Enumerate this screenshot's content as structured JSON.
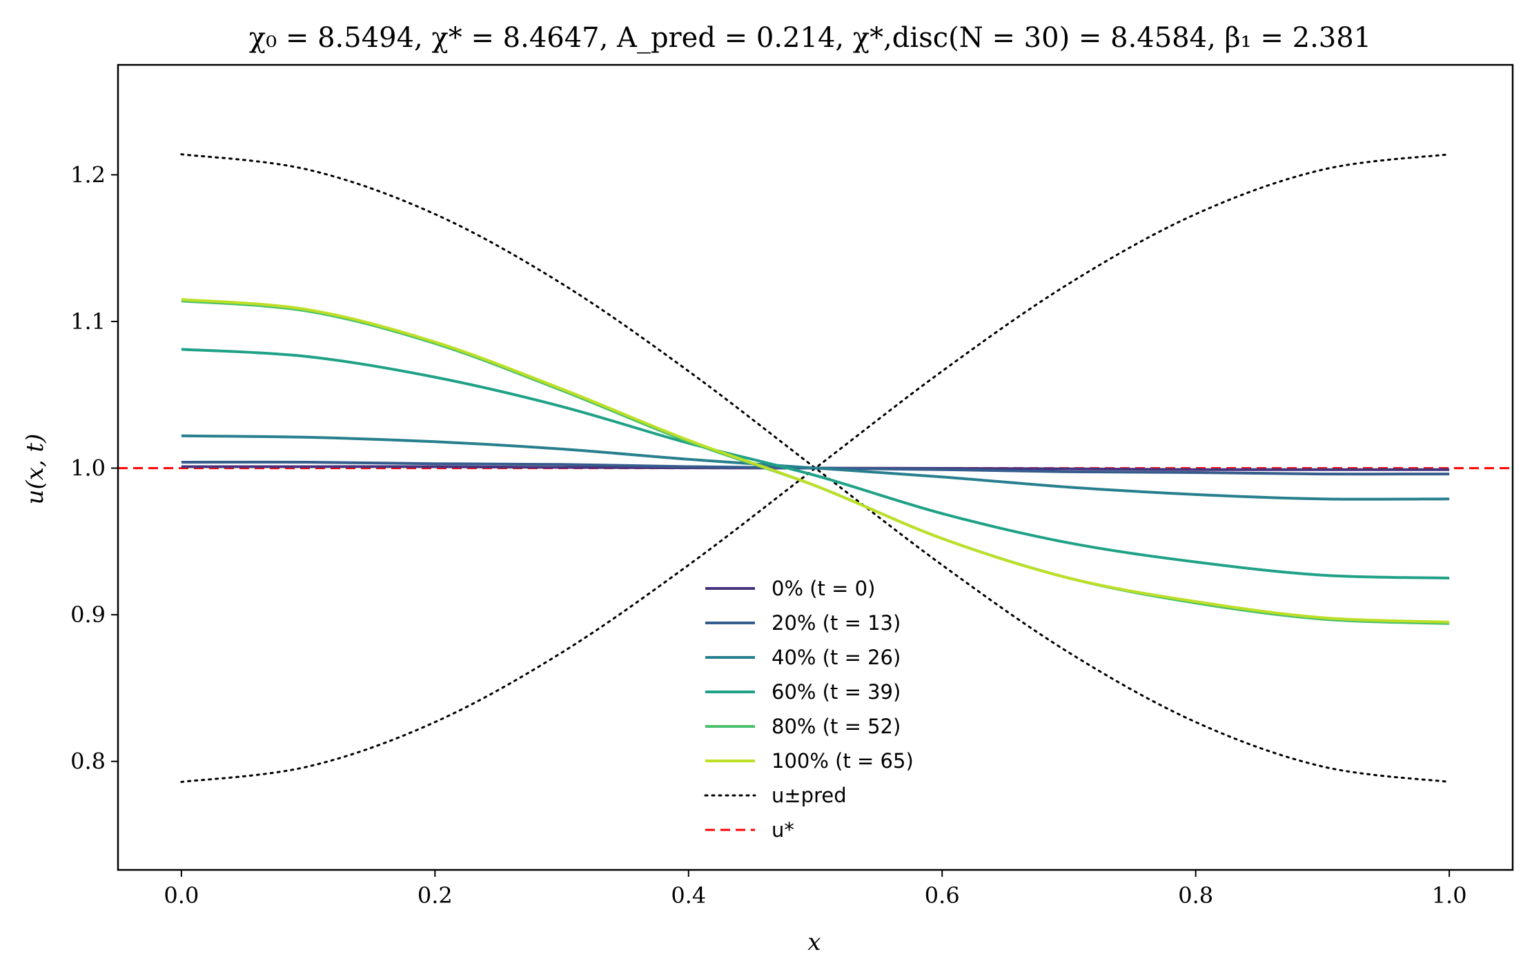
{
  "chart_data": {
    "type": "line",
    "title": "χ₀ = 8.5494,  χ* = 8.4647,  A_pred = 0.214,  χ*,disc(N = 30) = 8.4584,  β₁ = 2.381",
    "xlabel": "x",
    "ylabel": "u(x, t)",
    "xlim": [
      -0.05,
      1.05
    ],
    "ylim": [
      0.726,
      1.275
    ],
    "xticks": [
      "0.0",
      "0.2",
      "0.4",
      "0.6",
      "0.8",
      "1.0"
    ],
    "xtick_values": [
      0.0,
      0.2,
      0.4,
      0.6,
      0.8,
      1.0
    ],
    "yticks": [
      "0.8",
      "0.9",
      "1.0",
      "1.1",
      "1.2"
    ],
    "ytick_values": [
      0.8,
      0.9,
      1.0,
      1.1,
      1.2
    ],
    "grid": false,
    "legend_position": "lower-center",
    "x": [
      0.0,
      0.1,
      0.2,
      0.3,
      0.4,
      0.5,
      0.6,
      0.7,
      0.8,
      0.9,
      1.0
    ],
    "series": [
      {
        "name": "0% (t = 0)",
        "color": "#46327e",
        "style": "solid",
        "values": [
          1.001,
          1.001,
          1.001,
          1.0005,
          1.0002,
          1.0,
          0.9998,
          0.9995,
          0.999,
          0.999,
          0.999
        ]
      },
      {
        "name": "20% (t = 13)",
        "color": "#365c8d",
        "style": "solid",
        "values": [
          1.004,
          1.004,
          1.003,
          1.0025,
          1.001,
          1.0,
          0.999,
          0.9975,
          0.997,
          0.996,
          0.996
        ]
      },
      {
        "name": "40% (t = 26)",
        "color": "#277f8e",
        "style": "solid",
        "values": [
          1.022,
          1.021,
          1.018,
          1.013,
          1.006,
          1.0,
          0.994,
          0.987,
          0.982,
          0.979,
          0.979
        ]
      },
      {
        "name": "60% (t = 39)",
        "color": "#1fa187",
        "style": "solid",
        "values": [
          1.081,
          1.076,
          1.062,
          1.042,
          1.017,
          0.995,
          0.969,
          0.949,
          0.936,
          0.927,
          0.925
        ]
      },
      {
        "name": "80% (t = 52)",
        "color": "#4ac16d",
        "style": "solid",
        "values": [
          1.114,
          1.107,
          1.085,
          1.053,
          1.018,
          0.988,
          0.952,
          0.925,
          0.908,
          0.897,
          0.894
        ]
      },
      {
        "name": "100% (t = 65)",
        "color": "#bddf26",
        "style": "solid",
        "values": [
          1.115,
          1.108,
          1.086,
          1.054,
          1.019,
          0.988,
          0.952,
          0.925,
          0.909,
          0.898,
          0.895
        ]
      },
      {
        "name": "u±pred",
        "color": "#000000",
        "style": "dotted",
        "values": [
          1.214,
          1.2035,
          1.1732,
          1.1258,
          1.0661,
          1.0,
          0.9339,
          0.8742,
          0.8268,
          0.7965,
          0.786
        ],
        "mirror_values": [
          0.786,
          0.7965,
          0.8268,
          0.8742,
          0.9339,
          1.0,
          1.0661,
          1.1258,
          1.1732,
          1.2035,
          1.214
        ]
      },
      {
        "name": "u*",
        "color": "#ff0000",
        "style": "dashed",
        "values": [
          1.0,
          1.0,
          1.0,
          1.0,
          1.0,
          1.0,
          1.0,
          1.0,
          1.0,
          1.0,
          1.0
        ]
      }
    ]
  }
}
